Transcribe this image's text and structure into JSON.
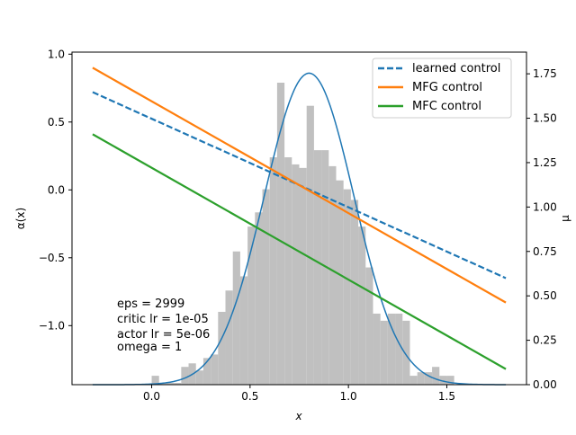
{
  "chart_data": {
    "type": "line",
    "xlabel": "x",
    "ylabel_left": "α(x)",
    "ylabel_right": "μ",
    "xlim": [
      -0.405,
      1.905
    ],
    "ylim_left": [
      -1.435,
      1.015
    ],
    "ylim_right": [
      0.0,
      1.872
    ],
    "x_ticks": [
      0.0,
      0.5,
      1.0,
      1.5
    ],
    "x_tick_labels": [
      "0.0",
      "0.5",
      "1.0",
      "1.5"
    ],
    "y_left_ticks": [
      1.0,
      0.5,
      0.0,
      -0.5,
      -1.0
    ],
    "y_left_tick_labels": [
      "1.0",
      "0.5",
      "0.0",
      "−0.5",
      "−1.0"
    ],
    "y_right_ticks": [
      0.0,
      0.25,
      0.5,
      0.75,
      1.0,
      1.25,
      1.5,
      1.75
    ],
    "y_right_tick_labels": [
      "0.00",
      "0.25",
      "0.50",
      "0.75",
      "1.00",
      "1.25",
      "1.50",
      "1.75"
    ],
    "grid": false,
    "legend_position": "top-right",
    "series": [
      {
        "name": "learned control",
        "axis": "left",
        "style": "dashed",
        "color": "#1f77b4",
        "x": [
          -0.3,
          1.8
        ],
        "y": [
          0.72,
          -0.65
        ]
      },
      {
        "name": "MFG control",
        "axis": "left",
        "style": "solid",
        "color": "#ff7f0e",
        "x": [
          -0.3,
          1.8
        ],
        "y": [
          0.9,
          -0.83
        ]
      },
      {
        "name": "MFC control",
        "axis": "left",
        "style": "solid",
        "color": "#2ca02c",
        "x": [
          -0.3,
          1.8
        ],
        "y": [
          0.41,
          -1.32
        ]
      }
    ],
    "density_curve": {
      "axis": "right",
      "color": "#1f77b4",
      "mean": 0.8,
      "std": 0.2275,
      "peak": 1.7535,
      "x_range": [
        -0.3,
        1.8
      ]
    },
    "histogram": {
      "axis": "right",
      "color": "#c0c0c0",
      "bin_width": 0.0375,
      "bins": [
        {
          "x0": 0.0,
          "h": 0.05
        },
        {
          "x0": 0.0375,
          "h": 0.01
        },
        {
          "x0": 0.075,
          "h": 0.01
        },
        {
          "x0": 0.1125,
          "h": 0.01
        },
        {
          "x0": 0.15,
          "h": 0.1
        },
        {
          "x0": 0.1875,
          "h": 0.12
        },
        {
          "x0": 0.225,
          "h": 0.08
        },
        {
          "x0": 0.2625,
          "h": 0.15
        },
        {
          "x0": 0.3,
          "h": 0.17
        },
        {
          "x0": 0.3375,
          "h": 0.41
        },
        {
          "x0": 0.375,
          "h": 0.53
        },
        {
          "x0": 0.4125,
          "h": 0.75
        },
        {
          "x0": 0.45,
          "h": 0.61
        },
        {
          "x0": 0.4875,
          "h": 0.89
        },
        {
          "x0": 0.525,
          "h": 0.97
        },
        {
          "x0": 0.5625,
          "h": 1.1
        },
        {
          "x0": 0.6,
          "h": 1.28
        },
        {
          "x0": 0.6375,
          "h": 1.7
        },
        {
          "x0": 0.675,
          "h": 1.28
        },
        {
          "x0": 0.7125,
          "h": 1.24
        },
        {
          "x0": 0.75,
          "h": 1.22
        },
        {
          "x0": 0.7875,
          "h": 1.57
        },
        {
          "x0": 0.825,
          "h": 1.32
        },
        {
          "x0": 0.8625,
          "h": 1.32
        },
        {
          "x0": 0.9,
          "h": 1.23
        },
        {
          "x0": 0.9375,
          "h": 1.15
        },
        {
          "x0": 0.975,
          "h": 1.1
        },
        {
          "x0": 1.0125,
          "h": 1.04
        },
        {
          "x0": 1.05,
          "h": 0.89
        },
        {
          "x0": 1.0875,
          "h": 0.66
        },
        {
          "x0": 1.125,
          "h": 0.4
        },
        {
          "x0": 1.1625,
          "h": 0.36
        },
        {
          "x0": 1.2,
          "h": 0.4
        },
        {
          "x0": 1.2375,
          "h": 0.4
        },
        {
          "x0": 1.275,
          "h": 0.36
        },
        {
          "x0": 1.3125,
          "h": 0.05
        },
        {
          "x0": 1.35,
          "h": 0.07
        },
        {
          "x0": 1.3875,
          "h": 0.07
        },
        {
          "x0": 1.425,
          "h": 0.1
        },
        {
          "x0": 1.4625,
          "h": 0.05
        },
        {
          "x0": 1.5,
          "h": 0.05
        }
      ]
    },
    "annotation_lines": [
      "eps = 2999",
      "critic lr = 1e-05",
      "actor lr = 5e-06",
      "omega = 1"
    ]
  }
}
